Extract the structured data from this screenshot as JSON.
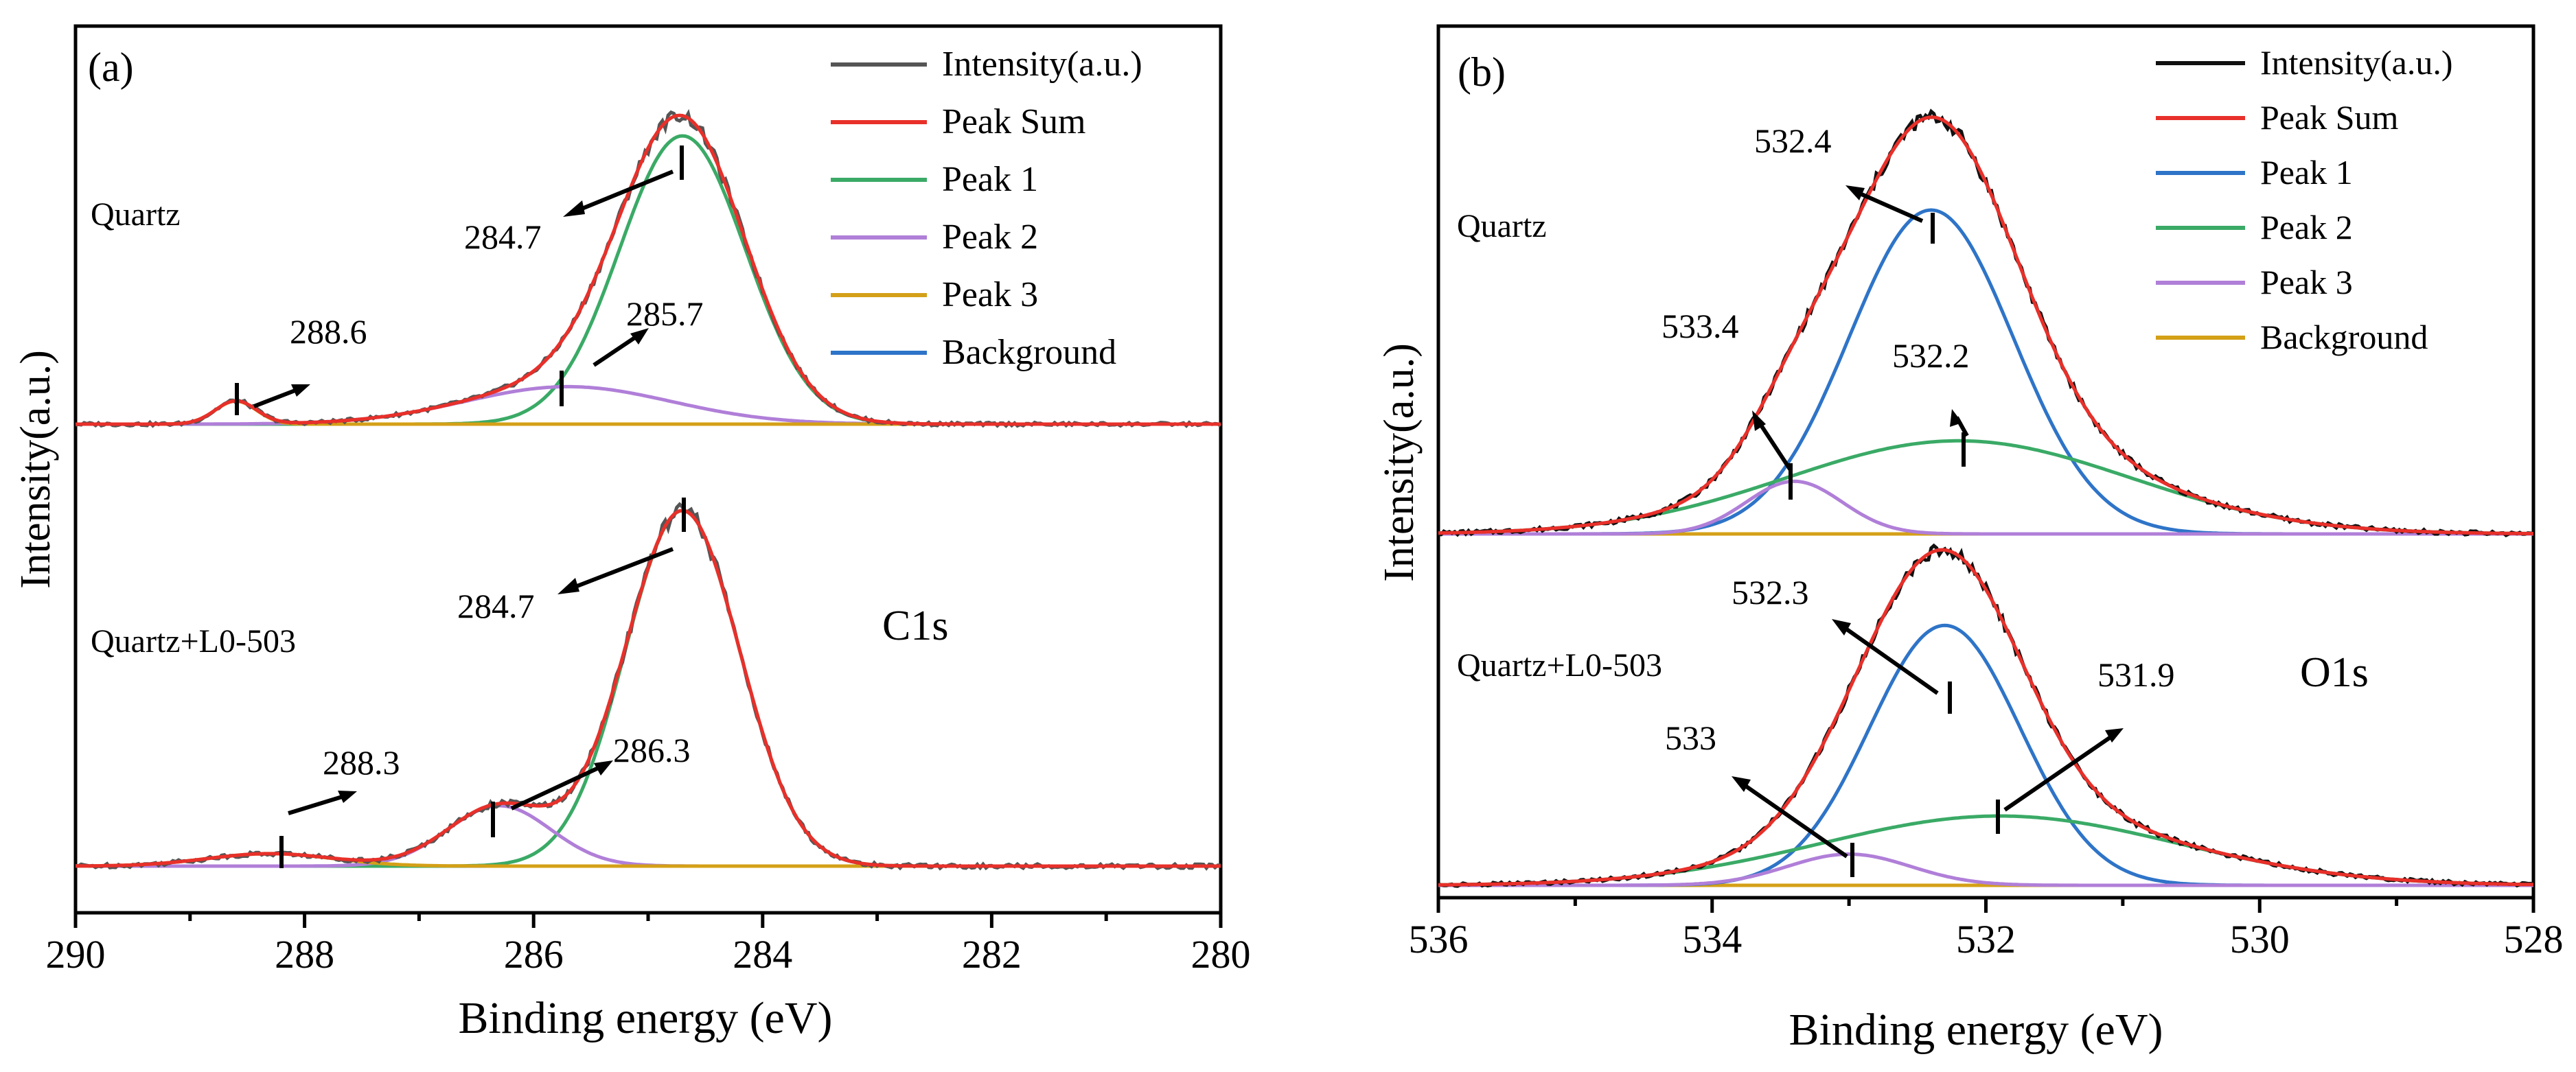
{
  "chart_data": [
    {
      "type": "line",
      "panel_label": "(a)",
      "xlabel": "Binding energy (eV)",
      "ylabel": "Intensity(a.u.)",
      "xlim": [
        290,
        280
      ],
      "x_ticks": [
        290,
        288,
        286,
        284,
        282,
        280
      ],
      "x_tick_labels": [
        "290",
        "288",
        "286",
        "284",
        "282",
        "280"
      ],
      "element_label": "C1s",
      "legend_position": "top-right",
      "legend": [
        {
          "name": "Intensity(a.u.)",
          "color": "#555555"
        },
        {
          "name": "Peak Sum",
          "color": "#e8302a"
        },
        {
          "name": "Peak 1",
          "color": "#3aaa66"
        },
        {
          "name": "Peak 2",
          "color": "#b07fd8"
        },
        {
          "name": "Peak 3",
          "color": "#d4a017"
        },
        {
          "name": "Background",
          "color": "#2e74c8"
        }
      ],
      "samples": [
        {
          "name": "Quartz",
          "baseline": 0.0,
          "peaks": [
            {
              "name": "Peak 1",
              "center": 284.7,
              "height": 1.0,
              "width": 0.55
            },
            {
              "name": "Peak 2",
              "center": 285.7,
              "height": 0.13,
              "width": 0.9
            },
            {
              "name": "Peak 3",
              "center": 288.6,
              "height": 0.08,
              "width": 0.18
            }
          ],
          "annotations": [
            "284.7",
            "285.7",
            "288.6"
          ]
        },
        {
          "name": "Quartz+L0-503",
          "baseline": 0.0,
          "peaks": [
            {
              "name": "Peak 1",
              "center": 284.7,
              "height": 1.0,
              "width": 0.5
            },
            {
              "name": "Peak 2",
              "center": 286.3,
              "height": 0.17,
              "width": 0.45
            },
            {
              "name": "Peak 3",
              "center": 288.3,
              "height": 0.035,
              "width": 0.55
            }
          ],
          "annotations": [
            "284.7",
            "286.3",
            "288.3"
          ]
        }
      ]
    },
    {
      "type": "line",
      "panel_label": "(b)",
      "xlabel": "Binding energy (eV)",
      "ylabel": "Intensity(a.u.)",
      "xlim": [
        536,
        528
      ],
      "x_ticks": [
        536,
        534,
        532,
        530,
        528
      ],
      "x_tick_labels": [
        "536",
        "534",
        "532",
        "530",
        "528"
      ],
      "element_label": "O1s",
      "legend_position": "top-right",
      "legend": [
        {
          "name": "Intensity(a.u.)",
          "color": "#111111"
        },
        {
          "name": "Peak Sum",
          "color": "#e8302a"
        },
        {
          "name": "Peak 1",
          "color": "#2e74c8"
        },
        {
          "name": "Peak 2",
          "color": "#3aaa66"
        },
        {
          "name": "Peak 3",
          "color": "#b07fd8"
        },
        {
          "name": "Background",
          "color": "#d4a017"
        }
      ],
      "samples": [
        {
          "name": "Quartz",
          "baseline": 0.0,
          "peaks": [
            {
              "name": "Peak 1",
              "center": 532.4,
              "height": 0.8,
              "width": 0.6
            },
            {
              "name": "Peak 2",
              "center": 532.2,
              "height": 0.23,
              "width": 1.25
            },
            {
              "name": "Peak 3",
              "center": 533.4,
              "height": 0.13,
              "width": 0.35
            }
          ],
          "annotations": [
            "532.4",
            "532.2",
            "533.4"
          ]
        },
        {
          "name": "Quartz+L0-503",
          "baseline": 0.0,
          "peaks": [
            {
              "name": "Peak 1",
              "center": 532.3,
              "height": 0.75,
              "width": 0.55
            },
            {
              "name": "Peak 2",
              "center": 531.9,
              "height": 0.2,
              "width": 1.3
            },
            {
              "name": "Peak 3",
              "center": 533.0,
              "height": 0.09,
              "width": 0.45
            }
          ],
          "annotations": [
            "532.3",
            "531.9",
            "533"
          ]
        }
      ]
    }
  ]
}
